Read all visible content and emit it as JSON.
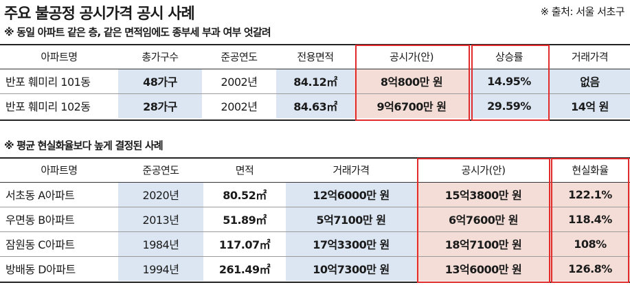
{
  "header": {
    "title": "주요 불공정 공시가격 공시 사례",
    "source": "※ 출처: 서울 서초구"
  },
  "table1": {
    "subtitle": "※ 동일 아파트 같은 층, 같은 면적임에도 종부세 부과 여부 엇갈려",
    "headers": [
      "아파트명",
      "총가구수",
      "준공연도",
      "전용면적",
      "공시가(안)",
      "상승률",
      "거래가격"
    ],
    "rows": [
      [
        "반포 훼미리 101동",
        "48가구",
        "2002년",
        "84.12㎡",
        "8억800만 원",
        "14.95%",
        "없음"
      ],
      [
        "반포 훼미리 102동",
        "28가구",
        "2002년",
        "84.63㎡",
        "9억6700만 원",
        "29.59%",
        "14억 원"
      ]
    ]
  },
  "table2": {
    "subtitle": "※ 평균 현실화율보다 높게 결정된 사례",
    "headers": [
      "아파트명",
      "준공연도",
      "면적",
      "거래가격",
      "공시가(안)",
      "현실화율"
    ],
    "rows": [
      [
        "서초동 A아파트",
        "2020년",
        "80.52㎡",
        "12억6000만 원",
        "15억3800만 원",
        "122.1%"
      ],
      [
        "우면동 B아파트",
        "2013년",
        "51.89㎡",
        "5억7100만 원",
        "6억7600만 원",
        "118.4%"
      ],
      [
        "잠원동 C아파트",
        "1984년",
        "117.07㎡",
        "17억3300만 원",
        "18억7100만 원",
        "108%"
      ],
      [
        "방배동 D아파트",
        "1994년",
        "261.49㎡",
        "10억7300만 원",
        "13억6000만 원",
        "126.8%"
      ]
    ]
  }
}
